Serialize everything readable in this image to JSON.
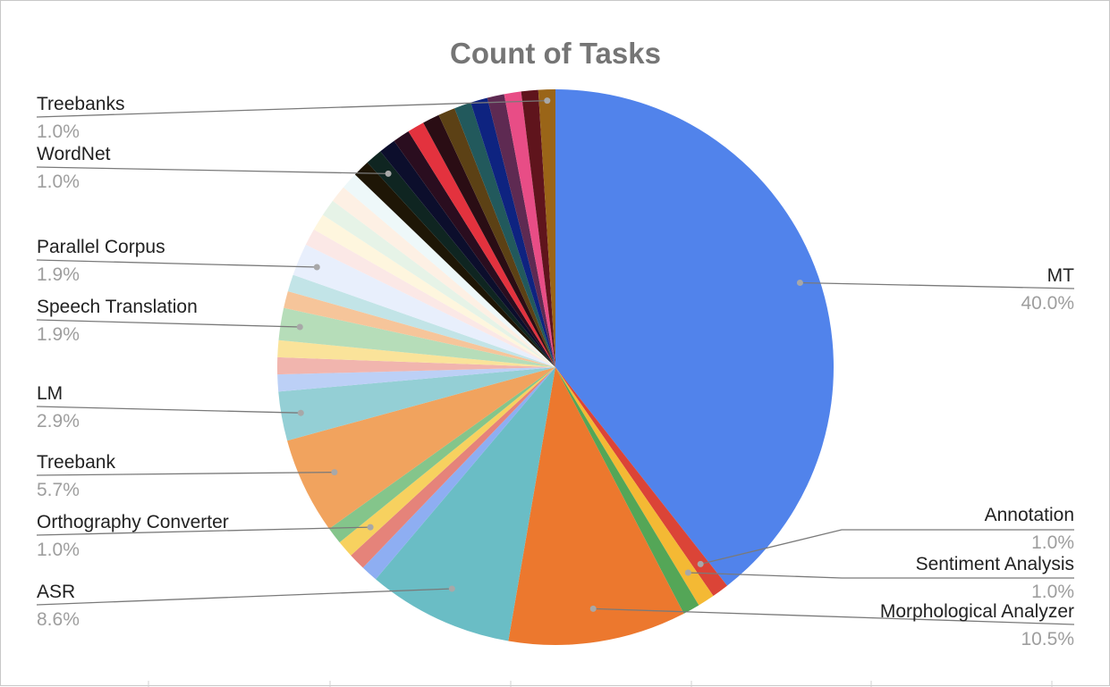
{
  "chart_data": {
    "type": "pie",
    "title": "Count of Tasks",
    "start_angle_deg": 0,
    "direction": "clockwise",
    "slices": [
      {
        "label": "MT",
        "percent": 40.0,
        "color": "#5183EB",
        "labeled": true
      },
      {
        "label": "Annotation",
        "percent": 1.0,
        "color": "#DB4437",
        "labeled": true
      },
      {
        "label": "Sentiment Analysis",
        "percent": 1.0,
        "color": "#F4B934",
        "labeled": true
      },
      {
        "label": "",
        "percent": 1.0,
        "color": "#54A657",
        "labeled": false
      },
      {
        "label": "Morphological Analyzer",
        "percent": 10.5,
        "color": "#EC782E",
        "labeled": true
      },
      {
        "label": "ASR",
        "percent": 8.6,
        "color": "#6ABDC5",
        "labeled": true
      },
      {
        "label": "",
        "percent": 1.0,
        "color": "#8EAEF2",
        "labeled": false
      },
      {
        "label": "",
        "percent": 1.0,
        "color": "#E5837A",
        "labeled": false
      },
      {
        "label": "Orthography Converter",
        "percent": 1.0,
        "color": "#F7D15F",
        "labeled": true
      },
      {
        "label": "",
        "percent": 1.0,
        "color": "#84C58B",
        "labeled": false
      },
      {
        "label": "Treebank",
        "percent": 5.7,
        "color": "#F1A35E",
        "labeled": true
      },
      {
        "label": "LM",
        "percent": 2.9,
        "color": "#94CFD5",
        "labeled": true
      },
      {
        "label": "",
        "percent": 1.0,
        "color": "#BCD0F6",
        "labeled": false
      },
      {
        "label": "",
        "percent": 1.0,
        "color": "#F1B5AE",
        "labeled": false
      },
      {
        "label": "",
        "percent": 1.0,
        "color": "#FAE39A",
        "labeled": false
      },
      {
        "label": "Speech Translation",
        "percent": 1.9,
        "color": "#B6DDB9",
        "labeled": true
      },
      {
        "label": "",
        "percent": 1.0,
        "color": "#F6C59A",
        "labeled": false
      },
      {
        "label": "",
        "percent": 1.0,
        "color": "#C2E4E7",
        "labeled": false
      },
      {
        "label": "Parallel Corpus",
        "percent": 1.9,
        "color": "#E8EFFC",
        "labeled": true
      },
      {
        "label": "",
        "percent": 1.0,
        "color": "#FBE8E6",
        "labeled": false
      },
      {
        "label": "",
        "percent": 1.0,
        "color": "#FEF6DE",
        "labeled": false
      },
      {
        "label": "",
        "percent": 1.0,
        "color": "#E6F3E7",
        "labeled": false
      },
      {
        "label": "",
        "percent": 1.0,
        "color": "#FDF0E4",
        "labeled": false
      },
      {
        "label": "",
        "percent": 1.0,
        "color": "#EEF8F9",
        "labeled": false
      },
      {
        "label": "",
        "percent": 1.0,
        "color": "#1E1606",
        "labeled": false
      },
      {
        "label": "WordNet",
        "percent": 1.0,
        "color": "#0F2521",
        "labeled": true
      },
      {
        "label": "",
        "percent": 1.0,
        "color": "#0C0E2C",
        "labeled": false
      },
      {
        "label": "",
        "percent": 1.0,
        "color": "#2A0D1F",
        "labeled": false
      },
      {
        "label": "",
        "percent": 1.0,
        "color": "#E3323E",
        "labeled": false
      },
      {
        "label": "",
        "percent": 1.0,
        "color": "#2A0D14",
        "labeled": false
      },
      {
        "label": "",
        "percent": 1.0,
        "color": "#5C4115",
        "labeled": false
      },
      {
        "label": "",
        "percent": 1.0,
        "color": "#22595C",
        "labeled": false
      },
      {
        "label": "",
        "percent": 1.0,
        "color": "#0E2380",
        "labeled": false
      },
      {
        "label": "",
        "percent": 1.0,
        "color": "#5E2A52",
        "labeled": false
      },
      {
        "label": "",
        "percent": 1.0,
        "color": "#E84D86",
        "labeled": false
      },
      {
        "label": "",
        "percent": 1.0,
        "color": "#5F141C",
        "labeled": false
      },
      {
        "label": "Treebanks",
        "percent": 1.0,
        "color": "#9A6518",
        "labeled": true
      }
    ],
    "labels": [
      {
        "name": "MT",
        "pct": "40.0%"
      },
      {
        "name": "Annotation",
        "pct": "1.0%"
      },
      {
        "name": "Sentiment Analysis",
        "pct": "1.0%"
      },
      {
        "name": "Morphological Analyzer",
        "pct": "10.5%"
      },
      {
        "name": "ASR",
        "pct": "8.6%"
      },
      {
        "name": "Orthography Converter",
        "pct": "1.0%"
      },
      {
        "name": "Treebank",
        "pct": "5.7%"
      },
      {
        "name": "LM",
        "pct": "2.9%"
      },
      {
        "name": "Speech Translation",
        "pct": "1.9%"
      },
      {
        "name": "Parallel Corpus",
        "pct": "1.9%"
      },
      {
        "name": "WordNet",
        "pct": "1.0%"
      },
      {
        "name": "Treebanks",
        "pct": "1.0%"
      }
    ]
  }
}
